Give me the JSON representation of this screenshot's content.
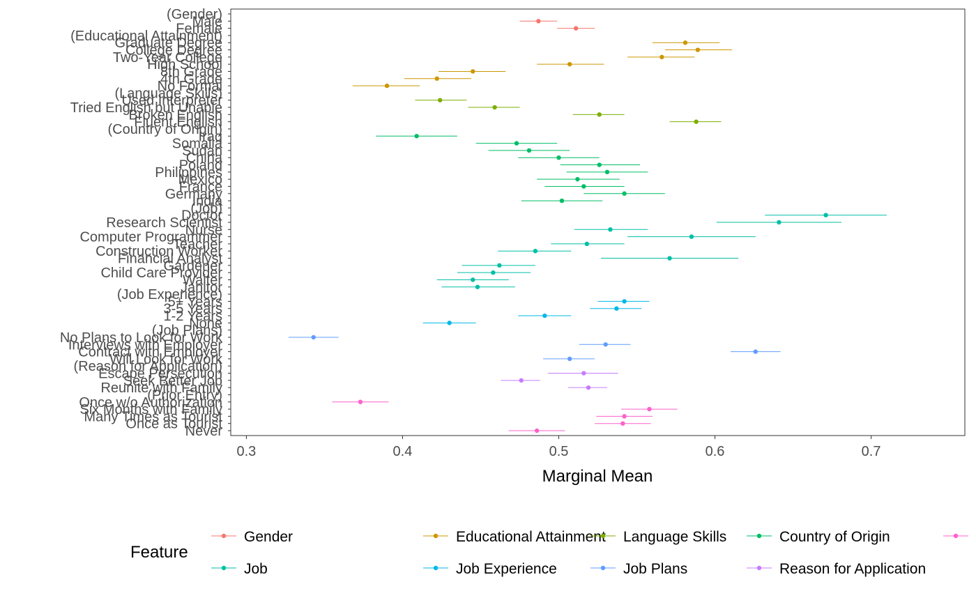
{
  "chart_data": {
    "type": "scatter",
    "subtype": "dot-and-whisker",
    "title": "",
    "xlabel": "Marginal Mean",
    "ylabel": "",
    "xlim": [
      0.29,
      0.76
    ],
    "xticks": [
      0.3,
      0.4,
      0.5,
      0.6,
      0.7
    ],
    "xtick_labels": [
      "0.3",
      "0.4",
      "0.5",
      "0.6",
      "0.7"
    ],
    "grid": false,
    "legend": {
      "title": "Feature",
      "position": "bottom",
      "entries": [
        {
          "name": "Gender",
          "color": "#F8766D"
        },
        {
          "name": "Educational Attainment",
          "color": "#CD9600"
        },
        {
          "name": "Language Skills",
          "color": "#7CAE00"
        },
        {
          "name": "Country of Origin",
          "color": "#00BE67"
        },
        {
          "name": "Job",
          "color": "#00BFA6"
        },
        {
          "name": "Job Experience",
          "color": "#00B8E7"
        },
        {
          "name": "Job Plans",
          "color": "#619CFF"
        },
        {
          "name": "Reason for Application",
          "color": "#C77CFF"
        },
        {
          "name": "",
          "color": "#FF61CC"
        }
      ]
    },
    "rows": [
      {
        "label": "(Gender)"
      },
      {
        "label": "Male",
        "feature": "Gender",
        "mean": 0.487,
        "lower": 0.475,
        "upper": 0.499
      },
      {
        "label": "Female",
        "feature": "Gender",
        "mean": 0.511,
        "lower": 0.499,
        "upper": 0.523
      },
      {
        "label": "(Educational Attainment)"
      },
      {
        "label": "Graduate Degree",
        "feature": "Educational Attainment",
        "mean": 0.581,
        "lower": 0.56,
        "upper": 0.603
      },
      {
        "label": "College Degree",
        "feature": "Educational Attainment",
        "mean": 0.589,
        "lower": 0.568,
        "upper": 0.611
      },
      {
        "label": "Two-Year College",
        "feature": "Educational Attainment",
        "mean": 0.566,
        "lower": 0.544,
        "upper": 0.587
      },
      {
        "label": "High School",
        "feature": "Educational Attainment",
        "mean": 0.507,
        "lower": 0.486,
        "upper": 0.529
      },
      {
        "label": "8th Grade",
        "feature": "Educational Attainment",
        "mean": 0.445,
        "lower": 0.423,
        "upper": 0.466
      },
      {
        "label": "4th Grade",
        "feature": "Educational Attainment",
        "mean": 0.422,
        "lower": 0.401,
        "upper": 0.444
      },
      {
        "label": "No Formal",
        "feature": "Educational Attainment",
        "mean": 0.39,
        "lower": 0.368,
        "upper": 0.411
      },
      {
        "label": "(Language Skills)"
      },
      {
        "label": "Used Interpreter",
        "feature": "Language Skills",
        "mean": 0.424,
        "lower": 0.408,
        "upper": 0.441
      },
      {
        "label": "Tried English but Unable",
        "feature": "Language Skills",
        "mean": 0.459,
        "lower": 0.442,
        "upper": 0.475
      },
      {
        "label": "Broken English",
        "feature": "Language Skills",
        "mean": 0.526,
        "lower": 0.509,
        "upper": 0.542
      },
      {
        "label": "Fluent English",
        "feature": "Language Skills",
        "mean": 0.588,
        "lower": 0.571,
        "upper": 0.604
      },
      {
        "label": "(Country of Origin)"
      },
      {
        "label": "Iraq",
        "feature": "Country of Origin",
        "mean": 0.409,
        "lower": 0.383,
        "upper": 0.435
      },
      {
        "label": "Somalia",
        "feature": "Country of Origin",
        "mean": 0.473,
        "lower": 0.447,
        "upper": 0.499
      },
      {
        "label": "Sudan",
        "feature": "Country of Origin",
        "mean": 0.481,
        "lower": 0.455,
        "upper": 0.507
      },
      {
        "label": "China",
        "feature": "Country of Origin",
        "mean": 0.5,
        "lower": 0.474,
        "upper": 0.526
      },
      {
        "label": "Poland",
        "feature": "Country of Origin",
        "mean": 0.526,
        "lower": 0.501,
        "upper": 0.552
      },
      {
        "label": "Philippines",
        "feature": "Country of Origin",
        "mean": 0.531,
        "lower": 0.505,
        "upper": 0.557
      },
      {
        "label": "Mexico",
        "feature": "Country of Origin",
        "mean": 0.512,
        "lower": 0.486,
        "upper": 0.539
      },
      {
        "label": "France",
        "feature": "Country of Origin",
        "mean": 0.516,
        "lower": 0.491,
        "upper": 0.542
      },
      {
        "label": "Germany",
        "feature": "Country of Origin",
        "mean": 0.542,
        "lower": 0.516,
        "upper": 0.568
      },
      {
        "label": "India",
        "feature": "Country of Origin",
        "mean": 0.502,
        "lower": 0.476,
        "upper": 0.528
      },
      {
        "label": "(Job)"
      },
      {
        "label": "Doctor",
        "feature": "Job",
        "mean": 0.671,
        "lower": 0.632,
        "upper": 0.71
      },
      {
        "label": "Research Scientist",
        "feature": "Job",
        "mean": 0.641,
        "lower": 0.601,
        "upper": 0.681
      },
      {
        "label": "Nurse",
        "feature": "Job",
        "mean": 0.533,
        "lower": 0.51,
        "upper": 0.557
      },
      {
        "label": "Computer Programmer",
        "feature": "Job",
        "mean": 0.585,
        "lower": 0.544,
        "upper": 0.626
      },
      {
        "label": "Teacher",
        "feature": "Job",
        "mean": 0.518,
        "lower": 0.495,
        "upper": 0.542
      },
      {
        "label": "Construction Worker",
        "feature": "Job",
        "mean": 0.485,
        "lower": 0.461,
        "upper": 0.508
      },
      {
        "label": "Financial Analyst",
        "feature": "Job",
        "mean": 0.571,
        "lower": 0.527,
        "upper": 0.615
      },
      {
        "label": "Gardener",
        "feature": "Job",
        "mean": 0.462,
        "lower": 0.438,
        "upper": 0.485
      },
      {
        "label": "Child Care Provider",
        "feature": "Job",
        "mean": 0.458,
        "lower": 0.435,
        "upper": 0.482
      },
      {
        "label": "Waiter",
        "feature": "Job",
        "mean": 0.445,
        "lower": 0.422,
        "upper": 0.468
      },
      {
        "label": "Janitor",
        "feature": "Job",
        "mean": 0.448,
        "lower": 0.425,
        "upper": 0.472
      },
      {
        "label": "(Job Experience)"
      },
      {
        "label": "5+ Years",
        "feature": "Job Experience",
        "mean": 0.542,
        "lower": 0.525,
        "upper": 0.558
      },
      {
        "label": "3-5 Years",
        "feature": "Job Experience",
        "mean": 0.537,
        "lower": 0.52,
        "upper": 0.553
      },
      {
        "label": "1-2 Years",
        "feature": "Job Experience",
        "mean": 0.491,
        "lower": 0.474,
        "upper": 0.508
      },
      {
        "label": "None",
        "feature": "Job Experience",
        "mean": 0.43,
        "lower": 0.413,
        "upper": 0.447
      },
      {
        "label": "(Job Plans)"
      },
      {
        "label": "No Plans to Look for Work",
        "feature": "Job Plans",
        "mean": 0.343,
        "lower": 0.327,
        "upper": 0.359
      },
      {
        "label": "Interviews with Employer",
        "feature": "Job Plans",
        "mean": 0.53,
        "lower": 0.513,
        "upper": 0.546
      },
      {
        "label": "Contract with Employer",
        "feature": "Job Plans",
        "mean": 0.626,
        "lower": 0.61,
        "upper": 0.642
      },
      {
        "label": "Will Look for Work",
        "feature": "Job Plans",
        "mean": 0.507,
        "lower": 0.49,
        "upper": 0.523
      },
      {
        "label": "(Reason for Application)"
      },
      {
        "label": "Escape Persecution",
        "feature": "Reason for Application",
        "mean": 0.516,
        "lower": 0.493,
        "upper": 0.538
      },
      {
        "label": "Seek Better Job",
        "feature": "Reason for Application",
        "mean": 0.476,
        "lower": 0.463,
        "upper": 0.488
      },
      {
        "label": "Reunite with Family",
        "feature": "Reason for Application",
        "mean": 0.519,
        "lower": 0.506,
        "upper": 0.531
      },
      {
        "label": "(Prior Entry)"
      },
      {
        "label": "Once w/o Authorization",
        "feature": "",
        "mean": 0.373,
        "lower": 0.355,
        "upper": 0.391
      },
      {
        "label": "Six Months with Family",
        "feature": "",
        "mean": 0.558,
        "lower": 0.54,
        "upper": 0.576
      },
      {
        "label": "Many Times as Tourist",
        "feature": "",
        "mean": 0.542,
        "lower": 0.524,
        "upper": 0.56
      },
      {
        "label": "Once as Tourist",
        "feature": "",
        "mean": 0.541,
        "lower": 0.523,
        "upper": 0.559
      },
      {
        "label": "Never",
        "feature": "",
        "mean": 0.486,
        "lower": 0.468,
        "upper": 0.504
      }
    ]
  }
}
